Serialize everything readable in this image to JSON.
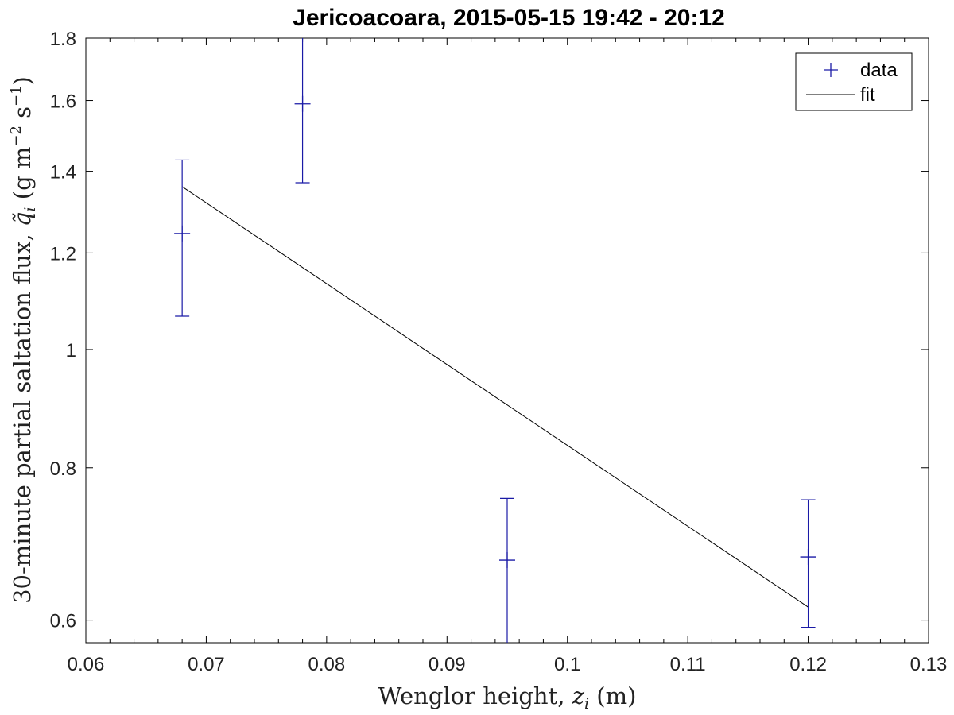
{
  "chart_data": {
    "type": "scatter",
    "title": "Jericoacoara, 2015-05-15 19:42 - 20:12",
    "xlabel_main": "Wenglor height, ",
    "xlabel_var": "z",
    "xlabel_sub": "i",
    "xlabel_unit": " (m)",
    "ylabel_main": "30-minute partial saltation flux, ",
    "ylabel_var": "q̃",
    "ylabel_sub": "i",
    "ylabel_unit_a": " (g m",
    "ylabel_exp1": "−2",
    "ylabel_unit_b": " s",
    "ylabel_exp2": "−1",
    "ylabel_unit_c": ")",
    "xlim": [
      0.06,
      0.13
    ],
    "ylim": [
      0.575,
      1.8
    ],
    "yscale": "log",
    "xticks": [
      "0.06",
      "0.07",
      "0.08",
      "0.09",
      "0.1",
      "0.11",
      "0.12",
      "0.13"
    ],
    "xtick_values": [
      0.06,
      0.07,
      0.08,
      0.09,
      0.1,
      0.11,
      0.12,
      0.13
    ],
    "yticks": [
      "0.6",
      "0.8",
      "1",
      "1.2",
      "1.4",
      "1.6",
      "1.8"
    ],
    "ytick_values": [
      0.6,
      0.8,
      1.0,
      1.2,
      1.4,
      1.6,
      1.8
    ],
    "legend": {
      "position": "top-right",
      "entries": [
        "data",
        "fit"
      ]
    },
    "series": [
      {
        "name": "data",
        "color": "#1a1aa6",
        "marker": "plus",
        "points": [
          {
            "x": 0.068,
            "y": 1.245,
            "ylow": 1.065,
            "yhigh": 1.43
          },
          {
            "x": 0.078,
            "y": 1.59,
            "ylow": 1.37,
            "yhigh": 1.81
          },
          {
            "x": 0.095,
            "y": 0.672,
            "ylow": 0.57,
            "yhigh": 0.755
          },
          {
            "x": 0.12,
            "y": 0.676,
            "ylow": 0.592,
            "yhigh": 0.753
          }
        ]
      },
      {
        "name": "fit",
        "color": "#000000",
        "line": {
          "x": [
            0.068,
            0.12
          ],
          "y": [
            1.36,
            0.615
          ]
        }
      }
    ]
  }
}
